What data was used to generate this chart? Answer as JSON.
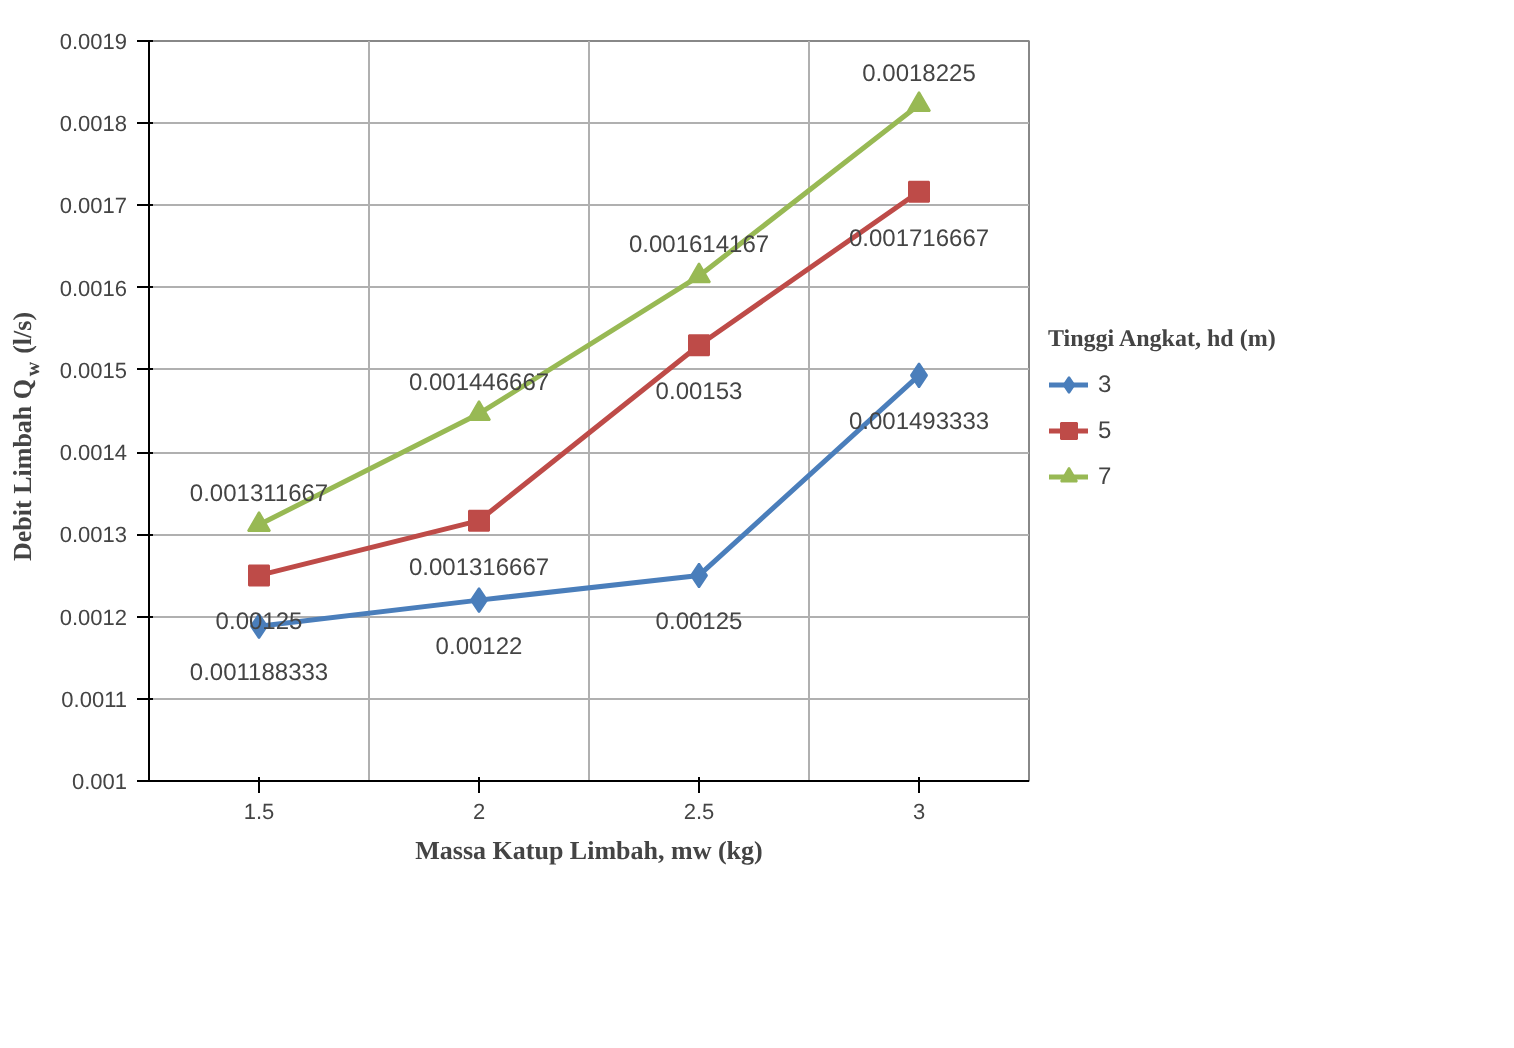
{
  "chart_data": {
    "type": "line",
    "xlabel": "Massa Katup Limbah, mw (kg)",
    "ylabel": "Debit Limbah Q$_{w}$ (l/s)",
    "legend_title": "Tinggi Angkat, hd (m)",
    "categories": [
      "1.5",
      "2",
      "2.5",
      "3"
    ],
    "ylim": [
      0.001,
      0.0019
    ],
    "yticks": [
      0.001,
      0.0011,
      0.0012,
      0.0013,
      0.0014,
      0.0015,
      0.0016,
      0.0017,
      0.0018,
      0.0019
    ],
    "grid": true,
    "legend": "right",
    "data_labels": true,
    "series": [
      {
        "name": "3",
        "color": "#4a7ebb",
        "marker": "diamond",
        "values": [
          0.001188333,
          0.00122,
          0.00125,
          0.001493333
        ]
      },
      {
        "name": "5",
        "color": "#be4b48",
        "marker": "square",
        "values": [
          0.00125,
          0.001316667,
          0.00153,
          0.001716667
        ]
      },
      {
        "name": "7",
        "color": "#98b954",
        "marker": "triangle",
        "values": [
          0.001311667,
          0.001446667,
          0.001614167,
          0.0018225
        ]
      }
    ]
  }
}
